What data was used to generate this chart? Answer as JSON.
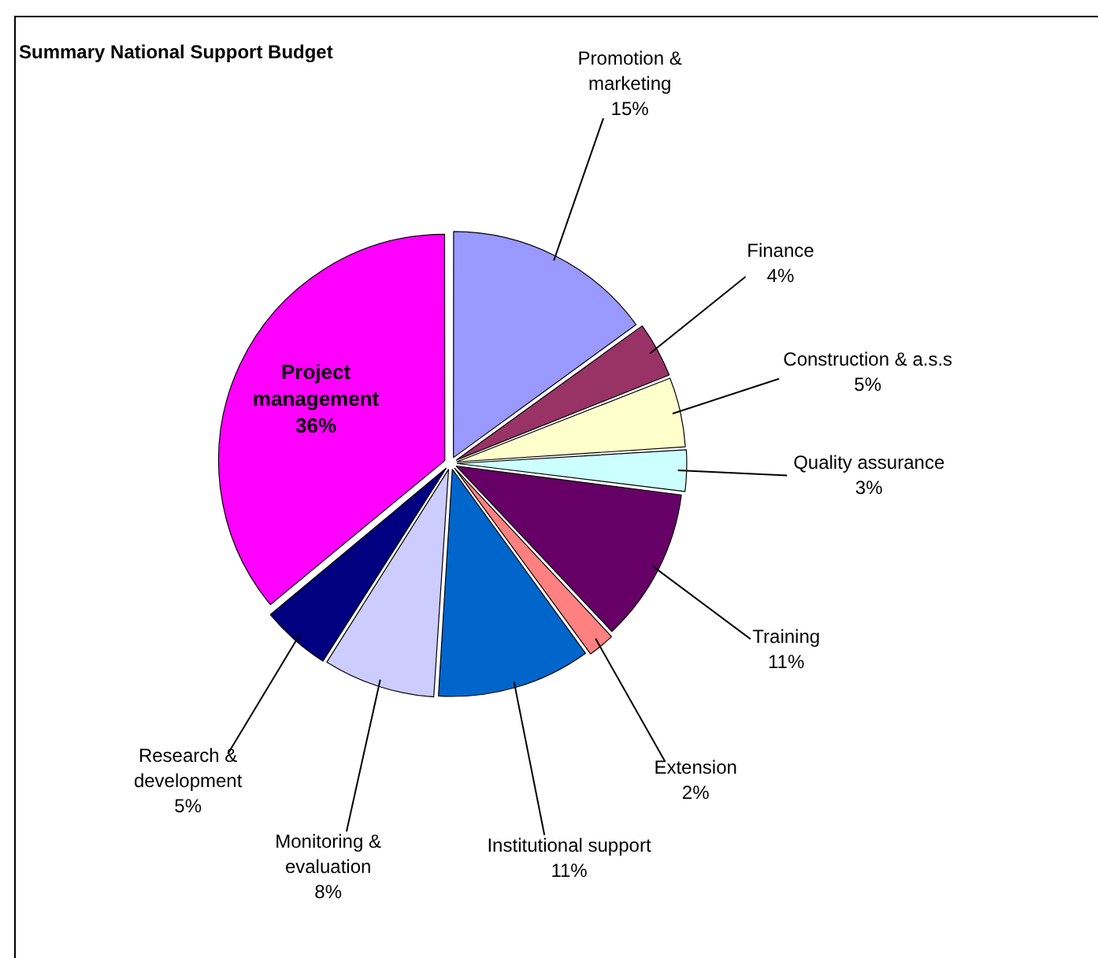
{
  "chart_data": {
    "type": "pie",
    "title": "Summary National Support Budget",
    "categories": [
      "Promotion & marketing",
      "Finance",
      "Construction & a.s.s",
      "Quality assurance",
      "Training",
      "Extension",
      "Institutional support",
      "Monitoring & evaluation",
      "Research & development",
      "Project management"
    ],
    "values": [
      15,
      4,
      5,
      3,
      11,
      2,
      11,
      8,
      5,
      36
    ],
    "value_labels": [
      "15%",
      "4%",
      "5%",
      "3%",
      "11%",
      "2%",
      "11%",
      "8%",
      "5%",
      "36%"
    ],
    "colors": [
      "#9999ff",
      "#993366",
      "#ffffcc",
      "#ccffff",
      "#660066",
      "#ff8080",
      "#0066cc",
      "#ccccff",
      "#000080",
      "#ff00ff"
    ],
    "legend": false
  }
}
